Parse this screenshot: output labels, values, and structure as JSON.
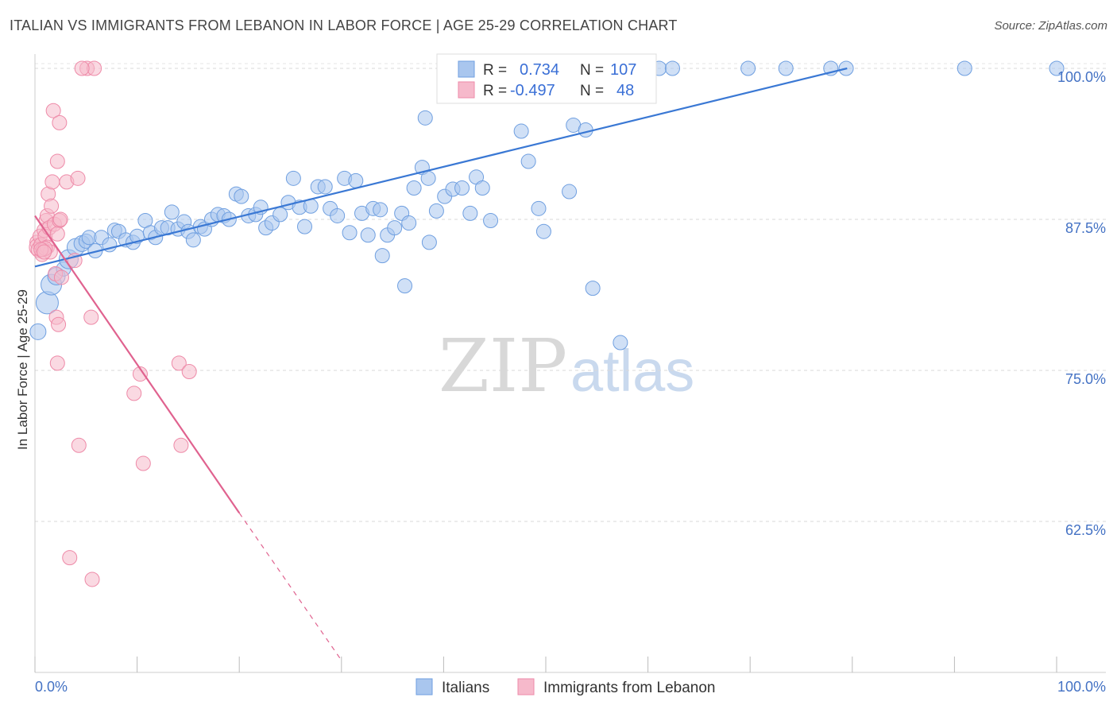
{
  "title": "ITALIAN VS IMMIGRANTS FROM LEBANON IN LABOR FORCE | AGE 25-29 CORRELATION CHART",
  "source": "Source: ZipAtlas.com",
  "watermark": {
    "zip": "ZIP",
    "atlas": "atlas"
  },
  "colors": {
    "blue_fill": "#a9c6ee",
    "blue_stroke": "#6f9fe0",
    "blue_line": "#3a78d4",
    "pink_fill": "#f6b9cb",
    "pink_stroke": "#ee8aa8",
    "pink_line": "#e0628f",
    "grid": "#d9d9d9",
    "tick_label": "#4472c4"
  },
  "legend": {
    "r_label": "R =",
    "n_label": "N =",
    "rows": [
      {
        "r": "0.734",
        "n": "107",
        "color": "blue"
      },
      {
        "r": "-0.497",
        "n": "48",
        "color": "pink"
      }
    ]
  },
  "bottom_legend": [
    "Italians",
    "Immigrants from Lebanon"
  ],
  "chart_data": {
    "type": "scatter",
    "title": "ITALIAN VS IMMIGRANTS FROM LEBANON IN LABOR FORCE | AGE 25-29 CORRELATION CHART",
    "xlabel": "",
    "ylabel": "In Labor Force | Age 25-29",
    "xlim": [
      0,
      100
    ],
    "ylim": [
      50,
      100
    ],
    "x_tick_labels": [
      "0.0%",
      "100.0%"
    ],
    "y_ticks": [
      100,
      87.5,
      75,
      62.5
    ],
    "y_tick_labels": [
      "100.0%",
      "87.5%",
      "75.0%",
      "62.5%"
    ],
    "grid": true,
    "legend_position": "top-center",
    "series": [
      {
        "name": "Italians",
        "color": "blue",
        "r": 0.734,
        "n": 107,
        "trend": {
          "x0": 0,
          "y0": 83.6,
          "x1": 79.5,
          "y1": 100
        },
        "points": [
          [
            0.3,
            78.2,
            16
          ],
          [
            1.2,
            80.6,
            24
          ],
          [
            1.6,
            82.1,
            22
          ],
          [
            2.1,
            82.8,
            18
          ],
          [
            2.8,
            83.4,
            14
          ],
          [
            3.3,
            84.2,
            20
          ],
          [
            4.0,
            85.2,
            18
          ],
          [
            4.6,
            85.5,
            16
          ],
          [
            5.0,
            85.7,
            14
          ],
          [
            5.3,
            86.0,
            14
          ],
          [
            5.9,
            84.9,
            14
          ],
          [
            6.5,
            86.0,
            14
          ],
          [
            7.3,
            85.4,
            14
          ],
          [
            7.8,
            86.6,
            14
          ],
          [
            8.2,
            86.5,
            14
          ],
          [
            8.9,
            85.8,
            14
          ],
          [
            9.6,
            85.6,
            14
          ],
          [
            10.0,
            86.1,
            14
          ],
          [
            10.8,
            87.4,
            14
          ],
          [
            11.3,
            86.4,
            14
          ],
          [
            11.8,
            86.0,
            14
          ],
          [
            12.4,
            86.8,
            14
          ],
          [
            13.0,
            86.8,
            14
          ],
          [
            13.4,
            88.1,
            14
          ],
          [
            14.0,
            86.7,
            14
          ],
          [
            14.6,
            87.3,
            14
          ],
          [
            15.0,
            86.5,
            14
          ],
          [
            15.5,
            85.8,
            14
          ],
          [
            16.2,
            86.9,
            14
          ],
          [
            16.6,
            86.7,
            14
          ],
          [
            17.3,
            87.5,
            14
          ],
          [
            17.9,
            87.9,
            14
          ],
          [
            18.5,
            87.8,
            14
          ],
          [
            19.0,
            87.5,
            14
          ],
          [
            19.7,
            89.6,
            14
          ],
          [
            20.2,
            89.4,
            14
          ],
          [
            20.9,
            87.8,
            14
          ],
          [
            21.6,
            87.9,
            14
          ],
          [
            22.1,
            88.5,
            14
          ],
          [
            22.6,
            86.8,
            14
          ],
          [
            23.2,
            87.2,
            14
          ],
          [
            24.0,
            87.9,
            14
          ],
          [
            24.8,
            88.9,
            14
          ],
          [
            25.3,
            90.9,
            14
          ],
          [
            25.9,
            88.5,
            14
          ],
          [
            26.4,
            86.9,
            14
          ],
          [
            27.0,
            88.6,
            14
          ],
          [
            27.7,
            90.2,
            14
          ],
          [
            28.4,
            90.2,
            14
          ],
          [
            28.9,
            88.4,
            14
          ],
          [
            29.6,
            87.8,
            14
          ],
          [
            30.3,
            90.9,
            14
          ],
          [
            30.8,
            86.4,
            14
          ],
          [
            31.4,
            90.7,
            14
          ],
          [
            32.0,
            88.0,
            14
          ],
          [
            32.6,
            86.2,
            14
          ],
          [
            33.1,
            88.4,
            14
          ],
          [
            33.8,
            88.3,
            14
          ],
          [
            34.5,
            86.2,
            14
          ],
          [
            34.0,
            84.5,
            14
          ],
          [
            35.2,
            86.8,
            14
          ],
          [
            35.9,
            88.0,
            14
          ],
          [
            36.6,
            87.2,
            14
          ],
          [
            36.2,
            82.0,
            14
          ],
          [
            37.1,
            90.1,
            14
          ],
          [
            37.9,
            91.8,
            14
          ],
          [
            38.5,
            90.9,
            14
          ],
          [
            39.3,
            88.2,
            14
          ],
          [
            38.2,
            95.9,
            14
          ],
          [
            40.1,
            89.4,
            14
          ],
          [
            40.9,
            90.0,
            14
          ],
          [
            41.8,
            90.1,
            14
          ],
          [
            42.6,
            88.0,
            14
          ],
          [
            43.2,
            91.0,
            14
          ],
          [
            43.8,
            90.1,
            14
          ],
          [
            44.6,
            87.4,
            14
          ],
          [
            45.6,
            100,
            14
          ],
          [
            46.8,
            100,
            14
          ],
          [
            47.6,
            94.8,
            14
          ],
          [
            48.3,
            92.3,
            14
          ],
          [
            48.6,
            100,
            14
          ],
          [
            49.3,
            88.4,
            14
          ],
          [
            50.2,
            100,
            14
          ],
          [
            51.0,
            100,
            14
          ],
          [
            51.9,
            100,
            14
          ],
          [
            52.7,
            95.3,
            14
          ],
          [
            53.1,
            100,
            14
          ],
          [
            53.9,
            94.9,
            14
          ],
          [
            55.1,
            100,
            14
          ],
          [
            56.4,
            100,
            14
          ],
          [
            58.0,
            100,
            14
          ],
          [
            59.7,
            100,
            14
          ],
          [
            61.1,
            100,
            14
          ],
          [
            62.4,
            100,
            14
          ],
          [
            49.8,
            86.5,
            14
          ],
          [
            38.6,
            85.6,
            14
          ],
          [
            42.9,
            100,
            14
          ],
          [
            52.3,
            89.8,
            14
          ],
          [
            54.6,
            81.8,
            14
          ],
          [
            57.3,
            77.3,
            14
          ],
          [
            69.8,
            100,
            14
          ],
          [
            73.5,
            100,
            14
          ],
          [
            77.9,
            100,
            14
          ],
          [
            79.4,
            100,
            14
          ],
          [
            91.0,
            100,
            14
          ],
          [
            100.0,
            100,
            14
          ],
          [
            40.9,
            100,
            14
          ]
        ]
      },
      {
        "name": "Immigrants from Lebanon",
        "color": "pink",
        "r": -0.497,
        "n": 48,
        "trend": {
          "x0": 0,
          "y0": 87.8,
          "x1": 20,
          "y1": 63.2,
          "dash_x1": 30,
          "dash_y1": 51
        },
        "points": [
          [
            0.2,
            85.6,
            14
          ],
          [
            0.3,
            85.2,
            18
          ],
          [
            0.4,
            85.0,
            16
          ],
          [
            0.5,
            86.1,
            14
          ],
          [
            0.6,
            85.4,
            14
          ],
          [
            0.7,
            84.6,
            14
          ],
          [
            0.8,
            85.0,
            14
          ],
          [
            0.9,
            86.6,
            14
          ],
          [
            1.0,
            86.1,
            14
          ],
          [
            1.1,
            87.4,
            14
          ],
          [
            1.2,
            87.8,
            14
          ],
          [
            1.2,
            85.2,
            14
          ],
          [
            1.3,
            89.6,
            14
          ],
          [
            1.4,
            86.8,
            14
          ],
          [
            1.5,
            84.8,
            14
          ],
          [
            1.6,
            88.6,
            14
          ],
          [
            1.7,
            90.6,
            14
          ],
          [
            1.8,
            96.5,
            14
          ],
          [
            1.9,
            87.1,
            14
          ],
          [
            2.0,
            83.0,
            14
          ],
          [
            2.1,
            79.4,
            14
          ],
          [
            2.2,
            75.6,
            14
          ],
          [
            2.2,
            92.3,
            14
          ],
          [
            2.3,
            78.8,
            14
          ],
          [
            2.4,
            87.4,
            14
          ],
          [
            2.5,
            87.5,
            14
          ],
          [
            2.6,
            82.7,
            14
          ],
          [
            2.2,
            86.3,
            14
          ],
          [
            2.4,
            95.5,
            14
          ],
          [
            3.1,
            90.6,
            14
          ],
          [
            3.4,
            59.5,
            14
          ],
          [
            3.9,
            84.1,
            14
          ],
          [
            4.2,
            90.9,
            14
          ],
          [
            4.3,
            68.8,
            14
          ],
          [
            5.1,
            100,
            14
          ],
          [
            5.5,
            79.4,
            14
          ],
          [
            5.8,
            100,
            14
          ],
          [
            4.6,
            100,
            14
          ],
          [
            5.6,
            57.7,
            14
          ],
          [
            9.7,
            73.1,
            14
          ],
          [
            10.3,
            74.7,
            14
          ],
          [
            10.6,
            67.3,
            14
          ],
          [
            14.1,
            75.6,
            14
          ],
          [
            14.3,
            68.8,
            14
          ],
          [
            15.1,
            74.9,
            14
          ],
          [
            1.0,
            85.1,
            14
          ],
          [
            0.6,
            85.0,
            14
          ],
          [
            0.9,
            84.8,
            14
          ]
        ]
      }
    ]
  }
}
